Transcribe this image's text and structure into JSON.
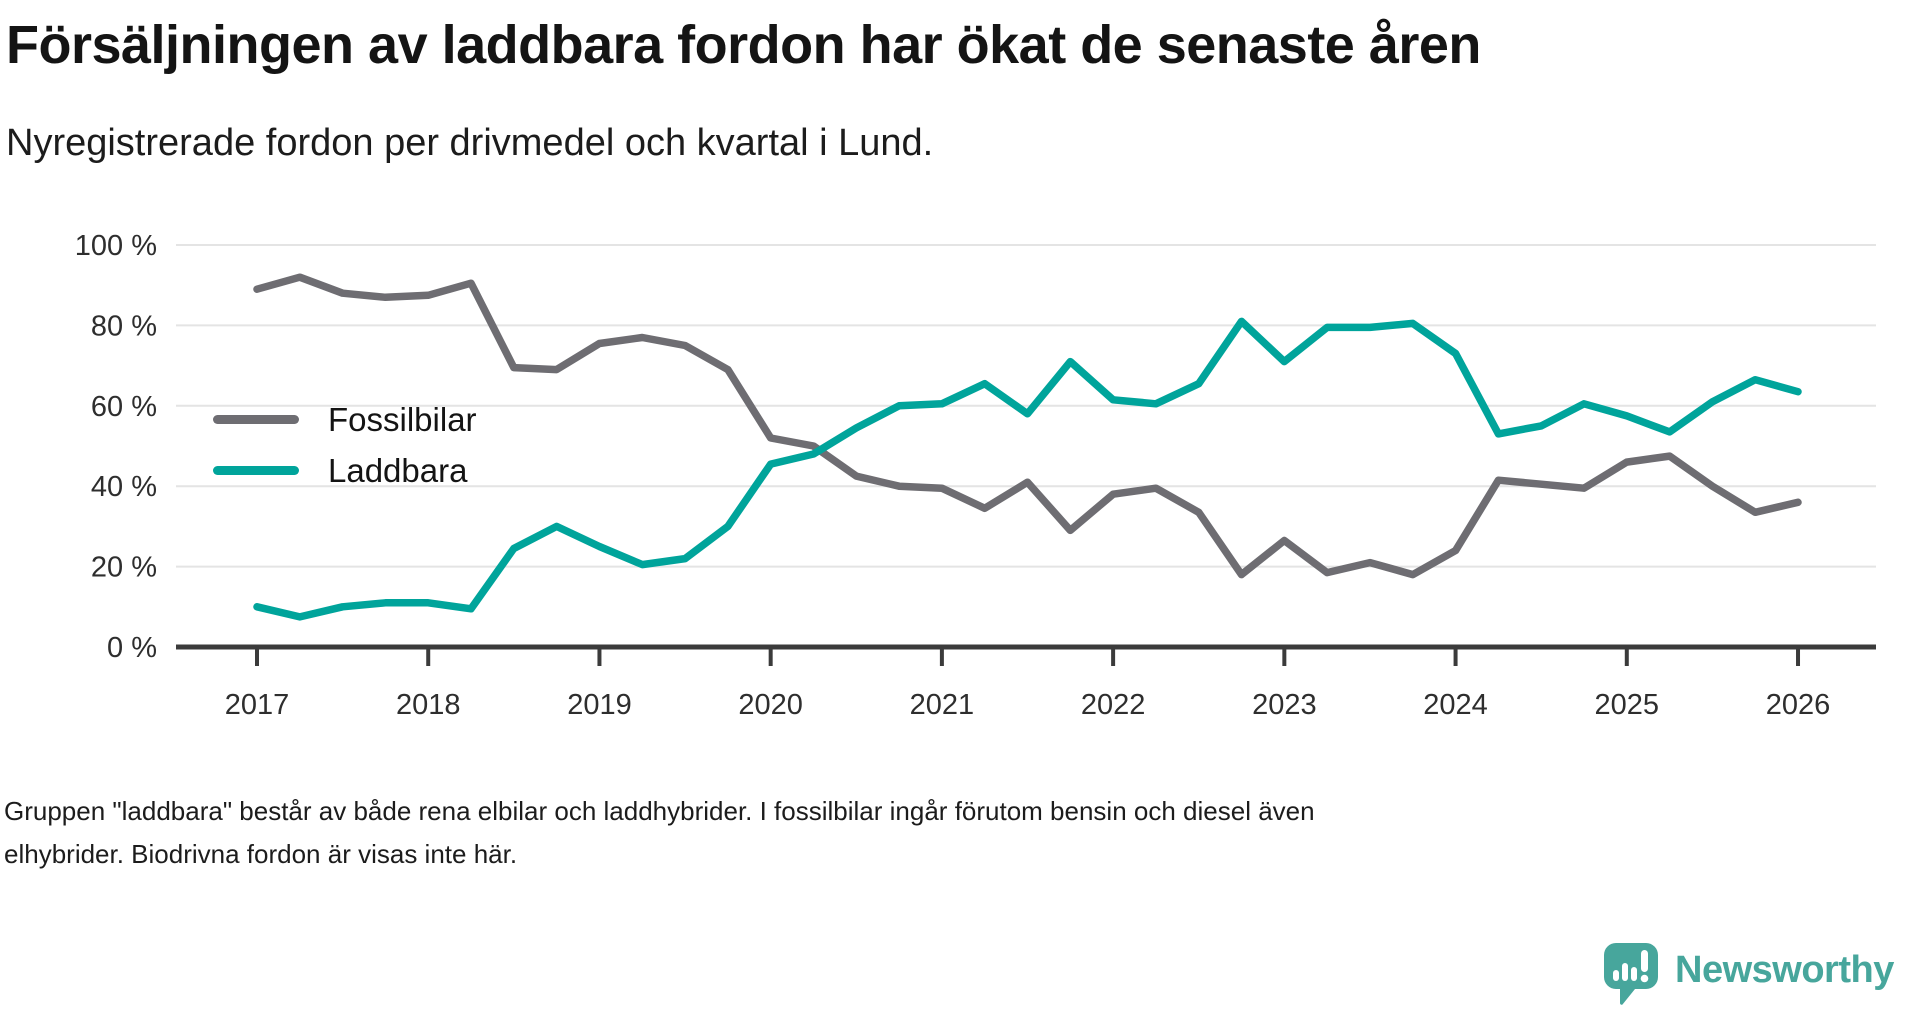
{
  "header": {
    "title": "Försäljningen av laddbara fordon har ökat de senaste åren",
    "subtitle": "Nyregistrerade fordon per drivmedel och kvartal i Lund."
  },
  "footer": {
    "note_lines": [
      "Gruppen \"laddbara\" består av både rena elbilar och laddhybrider. I fossilbilar ingår förutom bensin och diesel även",
      "elhybrider. Biodrivna fordon är visas inte här."
    ]
  },
  "branding": {
    "logo_text": "Newsworthy",
    "brand_color": "#47a69c"
  },
  "colors": {
    "grid": "#e4e4e4",
    "axis": "#3b3b3b",
    "tick_label": "#2e2e2e"
  },
  "chart_data": {
    "type": "line",
    "title": "Försäljningen av laddbara fordon har ökat de senaste åren",
    "subtitle": "Nyregistrerade fordon per drivmedel och kvartal i Lund.",
    "frequency": "quarterly",
    "unit": "%",
    "ylim": [
      0,
      100
    ],
    "grid": "horizontal",
    "legend_position": "inside-left",
    "y_ticks": [
      {
        "value": 0,
        "label": "0 %"
      },
      {
        "value": 20,
        "label": "20 %"
      },
      {
        "value": 40,
        "label": "40 %"
      },
      {
        "value": 60,
        "label": "60 %"
      },
      {
        "value": 80,
        "label": "80 %"
      },
      {
        "value": 100,
        "label": "100 %"
      }
    ],
    "x_tick_labels": [
      "2017",
      "2018",
      "2019",
      "2020",
      "2021",
      "2022",
      "2023",
      "2024",
      "2025",
      "2026"
    ],
    "x_quarters": [
      "2017Q1",
      "2017Q2",
      "2017Q3",
      "2017Q4",
      "2018Q1",
      "2018Q2",
      "2018Q3",
      "2018Q4",
      "2019Q1",
      "2019Q2",
      "2019Q3",
      "2019Q4",
      "2020Q1",
      "2020Q2",
      "2020Q3",
      "2020Q4",
      "2021Q1",
      "2021Q2",
      "2021Q3",
      "2021Q4",
      "2022Q1",
      "2022Q2",
      "2022Q3",
      "2022Q4",
      "2023Q1",
      "2023Q2",
      "2023Q3",
      "2023Q4",
      "2024Q1",
      "2024Q2",
      "2024Q3",
      "2024Q4",
      "2025Q1",
      "2025Q2",
      "2025Q3",
      "2025Q4",
      "2026Q1"
    ],
    "series": [
      {
        "name": "Fossilbilar",
        "color": "#6e6d72",
        "values": [
          89,
          92,
          88,
          87,
          87.5,
          90.5,
          69.5,
          69,
          75.5,
          77,
          75,
          69,
          52,
          50,
          42.5,
          40,
          39.5,
          34.5,
          41,
          29,
          38,
          39.5,
          33.5,
          18,
          26.5,
          18.5,
          21,
          18,
          24,
          41.5,
          40.5,
          39.5,
          46,
          47.5,
          40,
          33.5,
          36
        ]
      },
      {
        "name": "Laddbara",
        "color": "#00a49b",
        "values": [
          10,
          7.5,
          10,
          11,
          11,
          9.5,
          24.5,
          30,
          25,
          20.5,
          22,
          30,
          45.5,
          48,
          54.5,
          60,
          60.5,
          65.5,
          58,
          71,
          61.5,
          60.5,
          65.5,
          81,
          71,
          79.5,
          79.5,
          80.5,
          73,
          53,
          55,
          60.5,
          57.5,
          53.5,
          61,
          66.5,
          63.5
        ]
      }
    ]
  }
}
